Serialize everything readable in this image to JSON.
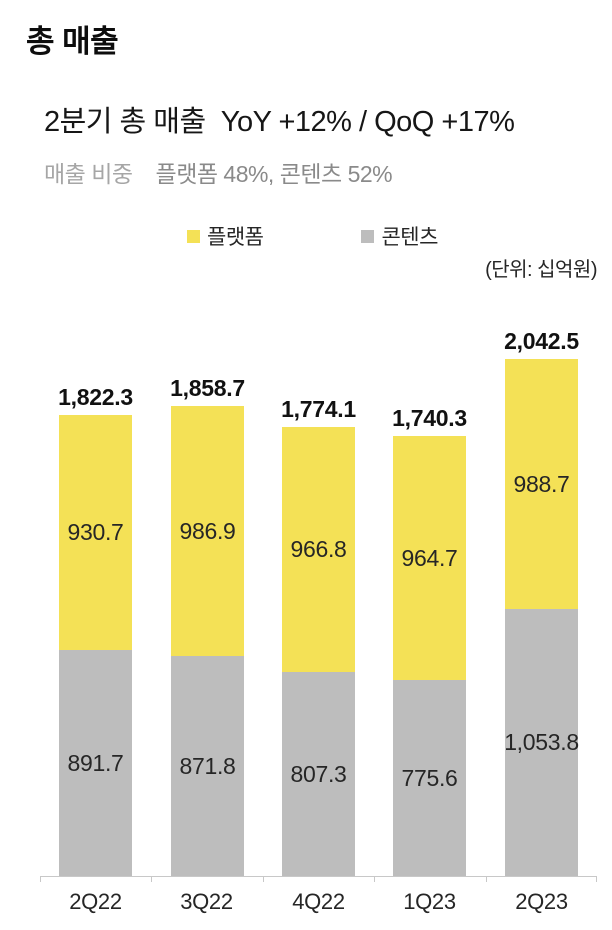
{
  "header": {
    "title": "총 매출",
    "subtitle": "2분기 총 매출  YoY +12% / QoQ +17%",
    "share_label": "매출 비중",
    "share_value": "플랫폼 48%, 콘텐츠 52%"
  },
  "legend": {
    "items": [
      {
        "label": "플랫폼",
        "color": "#F4E156"
      },
      {
        "label": "콘텐츠",
        "color": "#BDBDBD"
      }
    ]
  },
  "unit_note": "(단위: 십억원)",
  "chart_data": {
    "type": "bar",
    "stacked": true,
    "title": "총 매출",
    "unit": "십억원",
    "legend_position": "top",
    "grid": false,
    "ylim": [
      0,
      2160
    ],
    "categories": [
      "2Q22",
      "3Q22",
      "4Q22",
      "1Q23",
      "2Q23"
    ],
    "series": [
      {
        "name": "플랫폼",
        "color": "#F4E156",
        "values": [
          930.7,
          986.9,
          966.8,
          964.7,
          988.7
        ],
        "labels": [
          "930.7",
          "986.9",
          "966.8",
          "964.7",
          "988.7"
        ]
      },
      {
        "name": "콘텐츠",
        "color": "#BDBDBD",
        "values": [
          891.7,
          871.8,
          807.3,
          775.6,
          1053.8
        ],
        "labels": [
          "891.7",
          "871.8",
          "807.3",
          "775.6",
          "1,053.8"
        ]
      }
    ],
    "totals": [
      1822.3,
      1858.7,
      1774.1,
      1740.3,
      2042.5
    ],
    "total_labels": [
      "1,822.3",
      "1,858.7",
      "1,774.1",
      "1,740.3",
      "2,042.5"
    ],
    "axis": {
      "baseline_color": "#C8C8C8"
    }
  }
}
